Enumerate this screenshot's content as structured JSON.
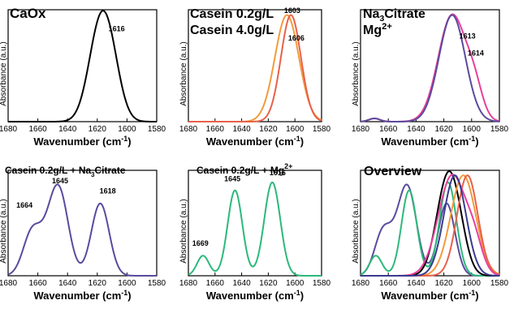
{
  "chart_data": [
    {
      "type": "line",
      "title": "CaOx",
      "xlabel": "Wavenumber (cm",
      "xlabel_sup": "-1",
      "xlabel_end": ")",
      "ylabel": "Absorbance (a.u.)",
      "xlim": [
        1680,
        1580
      ],
      "xticks": [
        1680,
        1660,
        1640,
        1620,
        1600,
        1580
      ],
      "ylim": [
        0,
        1.05
      ],
      "series": [
        {
          "color": "#000000",
          "peaks": [
            [
              1619,
              0.75,
              7.5
            ],
            [
              1611,
              0.45,
              7
            ]
          ]
        }
      ],
      "annotations": [
        {
          "text": "1616",
          "x": 1607,
          "y": 0.85
        }
      ]
    },
    {
      "type": "line",
      "title": "Casein 0.2g/L",
      "title2": "Casein 4.0g/L",
      "xlabel": "Wavenumber (cm",
      "xlabel_sup": "-1",
      "xlabel_end": ")",
      "ylabel": "Absorbance (a.u.)",
      "xlim": [
        1680,
        1580
      ],
      "xticks": [
        1680,
        1660,
        1640,
        1620,
        1600,
        1580
      ],
      "ylim": [
        0,
        1.05
      ],
      "series": [
        {
          "color": "#f39a3c",
          "peaks": [
            [
              1606,
              1.0,
              9
            ]
          ]
        },
        {
          "color": "#e8614a",
          "peaks": [
            [
              1603,
              1.0,
              7.5
            ]
          ]
        }
      ],
      "annotations": [
        {
          "text": "1603",
          "x": 1602,
          "y": 1.02
        },
        {
          "text": "1606",
          "x": 1599,
          "y": 0.76
        }
      ]
    },
    {
      "type": "line",
      "title": "Na",
      "title_sub": "3",
      "title_end": "Citrate",
      "title2": "Mg",
      "title2_sup": "2+",
      "xlabel": "Wavenumber (cm",
      "xlabel_sup": "-1",
      "xlabel_end": ")",
      "ylabel": "Absorbance (a.u.)",
      "xlim": [
        1680,
        1580
      ],
      "xticks": [
        1680,
        1660,
        1640,
        1620,
        1600,
        1580
      ],
      "ylim": [
        0,
        1.05
      ],
      "series": [
        {
          "color": "#e8409b",
          "peaks": [
            [
              1614,
              1.0,
              10
            ],
            [
              1598,
              0.25,
              6
            ],
            [
              1670,
              0.03,
              4
            ]
          ]
        },
        {
          "color": "#5b4a9e",
          "peaks": [
            [
              1614,
              1.0,
              9.5
            ],
            [
              1670,
              0.03,
              4
            ]
          ]
        }
      ],
      "annotations": [
        {
          "text": "1613",
          "x": 1603,
          "y": 0.78
        },
        {
          "text": "1614",
          "x": 1597,
          "y": 0.62
        }
      ]
    },
    {
      "type": "line",
      "title": "Casein 0.2g/L + Na",
      "title_sub": "3",
      "title_end": "Citrate",
      "xlabel": "Wavenumber (cm",
      "xlabel_sup": "-1",
      "xlabel_end": ")",
      "ylabel": "Absorbance (a.u.)",
      "xlim": [
        1680,
        1580
      ],
      "xticks": [
        1680,
        1660,
        1640,
        1620,
        1600,
        1580
      ],
      "ylim": [
        0,
        1.05
      ],
      "series": [
        {
          "color": "#5b4a9e",
          "peaks": [
            [
              1664,
              0.42,
              6
            ],
            [
              1646,
              0.85,
              6.5
            ],
            [
              1618,
              0.72,
              6
            ],
            [
              1655,
              0.15,
              6
            ]
          ]
        }
      ],
      "annotations": [
        {
          "text": "1664",
          "x": 1669,
          "y": 0.68
        },
        {
          "text": "1645",
          "x": 1645,
          "y": 0.92
        },
        {
          "text": "1618",
          "x": 1613,
          "y": 0.82
        }
      ]
    },
    {
      "type": "line",
      "title": "Casein 0.2g/L + Mg",
      "title_sup": "2+",
      "xlabel": "Wavenumber (cm",
      "xlabel_sup": "-1",
      "xlabel_end": ")",
      "ylabel": "Absorbance (a.u.)",
      "xlim": [
        1680,
        1580
      ],
      "xticks": [
        1680,
        1660,
        1640,
        1620,
        1600,
        1580
      ],
      "ylim": [
        0,
        1.05
      ],
      "series": [
        {
          "color": "#2db87a",
          "peaks": [
            [
              1669,
              0.2,
              4.5
            ],
            [
              1645,
              0.85,
              5.5
            ],
            [
              1617,
              0.93,
              6
            ]
          ]
        }
      ],
      "annotations": [
        {
          "text": "1669",
          "x": 1671,
          "y": 0.3
        },
        {
          "text": "1645",
          "x": 1647,
          "y": 0.94
        },
        {
          "text": "1616",
          "x": 1613,
          "y": 1.0
        }
      ]
    },
    {
      "type": "line",
      "title": "Overview",
      "xlabel": "Wavenumber (cm",
      "xlabel_sup": "-1",
      "xlabel_end": ")",
      "ylabel": "Absorbance (a.u.)",
      "xlim": [
        1680,
        1580
      ],
      "xticks": [
        1680,
        1660,
        1640,
        1620,
        1600,
        1580
      ],
      "ylim": [
        0,
        1.05
      ],
      "series": [
        {
          "color": "#5b4a9e",
          "peaks": [
            [
              1664,
              0.42,
              6
            ],
            [
              1646,
              0.85,
              6.5
            ],
            [
              1618,
              0.72,
              6
            ],
            [
              1655,
              0.15,
              6
            ]
          ]
        },
        {
          "color": "#2db87a",
          "peaks": [
            [
              1669,
              0.2,
              4.5
            ],
            [
              1645,
              0.85,
              5.5
            ],
            [
              1617,
              0.93,
              6
            ]
          ]
        },
        {
          "color": "#000000",
          "peaks": [
            [
              1619,
              0.75,
              7.5
            ],
            [
              1611,
              0.45,
              7
            ]
          ]
        },
        {
          "color": "#f39a3c",
          "peaks": [
            [
              1606,
              1.0,
              9
            ]
          ]
        },
        {
          "color": "#e8614a",
          "peaks": [
            [
              1603,
              1.0,
              7.5
            ]
          ]
        },
        {
          "color": "#e8409b",
          "peaks": [
            [
              1614,
              1.0,
              10
            ],
            [
              1598,
              0.25,
              6
            ]
          ]
        },
        {
          "color": "#3b3b8f",
          "peaks": [
            [
              1612,
              1.0,
              8
            ]
          ]
        }
      ],
      "annotations": []
    }
  ]
}
